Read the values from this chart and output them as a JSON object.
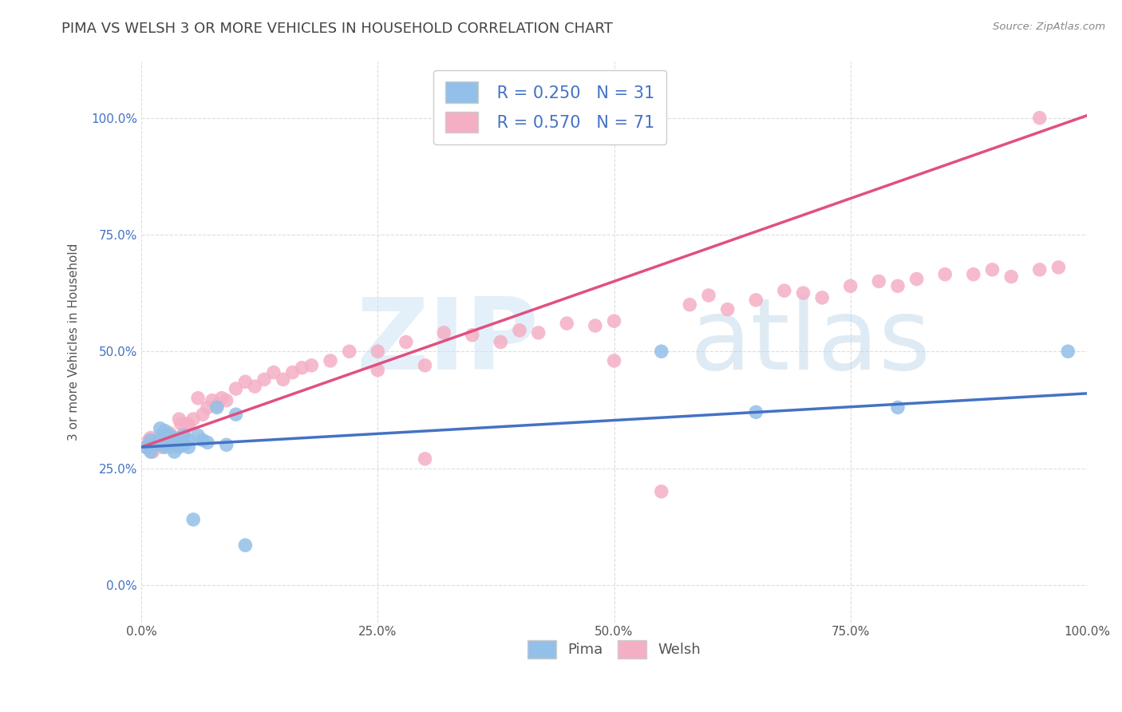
{
  "title": "PIMA VS WELSH 3 OR MORE VEHICLES IN HOUSEHOLD CORRELATION CHART",
  "source": "Source: ZipAtlas.com",
  "ylabel": "3 or more Vehicles in Household",
  "xlabel": "",
  "watermark_zip": "ZIP",
  "watermark_atlas": "atlas",
  "xlim": [
    0.0,
    1.0
  ],
  "ylim": [
    -0.08,
    1.12
  ],
  "xticks": [
    0.0,
    0.25,
    0.5,
    0.75,
    1.0
  ],
  "xtick_labels": [
    "0.0%",
    "25.0%",
    "50.0%",
    "75.0%",
    "100.0%"
  ],
  "yticks": [
    0.0,
    0.25,
    0.5,
    0.75,
    1.0
  ],
  "ytick_labels": [
    "0.0%",
    "25.0%",
    "50.0%",
    "75.0%",
    "100.0%"
  ],
  "pima_color": "#92c0e8",
  "welsh_color": "#f4afc5",
  "line_pima_color": "#4472c4",
  "line_welsh_color": "#e05080",
  "legend_r_pima": "R = 0.250",
  "legend_n_pima": "N = 31",
  "legend_r_welsh": "R = 0.570",
  "legend_n_welsh": "N = 71",
  "pima_x": [
    0.005,
    0.01,
    0.01,
    0.015,
    0.02,
    0.02,
    0.025,
    0.025,
    0.03,
    0.03,
    0.035,
    0.035,
    0.04,
    0.04,
    0.04,
    0.045,
    0.045,
    0.05,
    0.05,
    0.055,
    0.06,
    0.065,
    0.07,
    0.08,
    0.09,
    0.1,
    0.11,
    0.55,
    0.65,
    0.8,
    0.98
  ],
  "pima_y": [
    0.295,
    0.285,
    0.31,
    0.3,
    0.335,
    0.31,
    0.33,
    0.295,
    0.32,
    0.3,
    0.285,
    0.315,
    0.3,
    0.31,
    0.295,
    0.32,
    0.3,
    0.31,
    0.295,
    0.14,
    0.32,
    0.31,
    0.305,
    0.38,
    0.3,
    0.365,
    0.085,
    0.5,
    0.37,
    0.38,
    0.5
  ],
  "welsh_x": [
    0.005,
    0.008,
    0.01,
    0.012,
    0.015,
    0.018,
    0.02,
    0.022,
    0.025,
    0.028,
    0.03,
    0.032,
    0.035,
    0.038,
    0.04,
    0.042,
    0.045,
    0.048,
    0.05,
    0.055,
    0.06,
    0.065,
    0.07,
    0.075,
    0.08,
    0.085,
    0.09,
    0.1,
    0.11,
    0.12,
    0.13,
    0.14,
    0.15,
    0.16,
    0.17,
    0.18,
    0.2,
    0.22,
    0.25,
    0.28,
    0.3,
    0.32,
    0.35,
    0.38,
    0.4,
    0.42,
    0.45,
    0.48,
    0.5,
    0.55,
    0.58,
    0.6,
    0.62,
    0.65,
    0.68,
    0.7,
    0.72,
    0.75,
    0.78,
    0.8,
    0.82,
    0.85,
    0.88,
    0.9,
    0.92,
    0.95,
    0.97,
    0.25,
    0.3,
    0.5,
    0.95
  ],
  "welsh_y": [
    0.295,
    0.31,
    0.315,
    0.285,
    0.3,
    0.31,
    0.32,
    0.295,
    0.3,
    0.315,
    0.325,
    0.295,
    0.31,
    0.305,
    0.355,
    0.345,
    0.325,
    0.345,
    0.34,
    0.355,
    0.4,
    0.365,
    0.38,
    0.395,
    0.385,
    0.4,
    0.395,
    0.42,
    0.435,
    0.425,
    0.44,
    0.455,
    0.44,
    0.455,
    0.465,
    0.47,
    0.48,
    0.5,
    0.46,
    0.52,
    0.27,
    0.54,
    0.535,
    0.52,
    0.545,
    0.54,
    0.56,
    0.555,
    0.565,
    0.2,
    0.6,
    0.62,
    0.59,
    0.61,
    0.63,
    0.625,
    0.615,
    0.64,
    0.65,
    0.64,
    0.655,
    0.665,
    0.665,
    0.675,
    0.66,
    0.675,
    0.68,
    0.5,
    0.47,
    0.48,
    1.0
  ],
  "background_color": "#ffffff",
  "grid_color": "#dddddd",
  "title_fontsize": 13,
  "axis_fontsize": 11,
  "tick_fontsize": 11,
  "legend_fontsize": 15,
  "pima_line_intercept": 0.295,
  "pima_line_slope": 0.115,
  "welsh_line_intercept": 0.295,
  "welsh_line_slope": 0.71
}
